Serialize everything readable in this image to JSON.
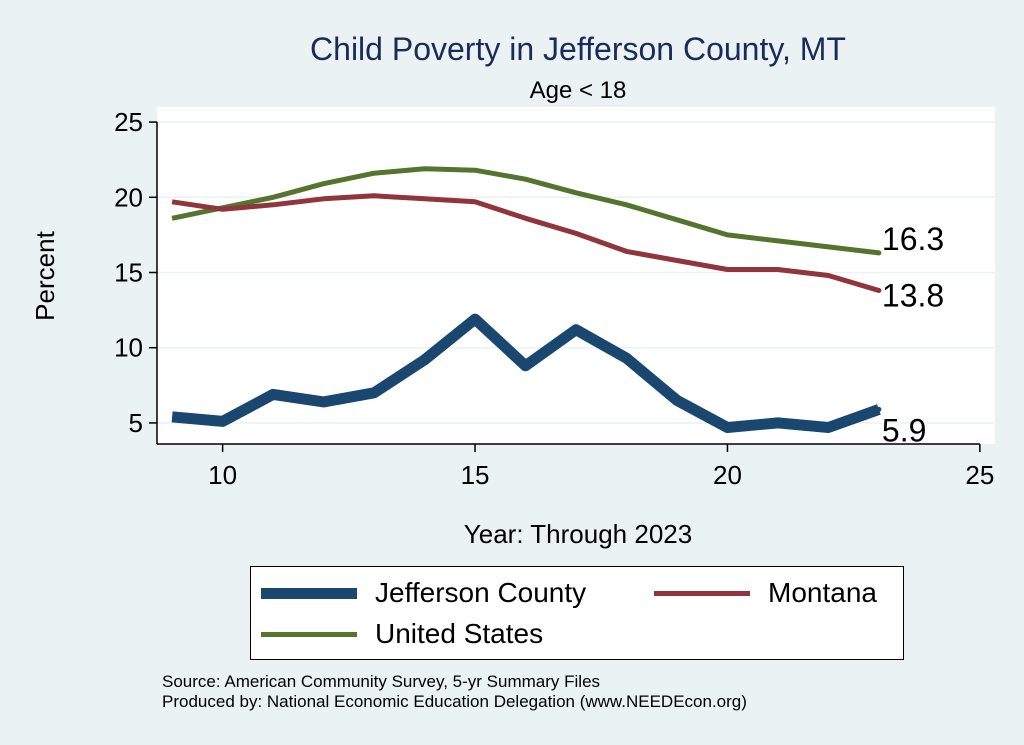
{
  "chart_data": {
    "type": "line",
    "title": "Child Poverty in Jefferson County, MT",
    "subtitle": "Age < 18",
    "xlabel": "Year: Through 2023",
    "ylabel": "Percent",
    "xlim": [
      8.7,
      25.3
    ],
    "ylim": [
      3.6,
      26
    ],
    "xticks": [
      10,
      15,
      20,
      25
    ],
    "yticks": [
      5,
      10,
      15,
      20,
      25
    ],
    "x": [
      9,
      10,
      11,
      12,
      13,
      14,
      15,
      16,
      17,
      18,
      19,
      20,
      21,
      22,
      23
    ],
    "series": [
      {
        "name": "Jefferson County",
        "color": "#1a476f",
        "values": [
          5.4,
          5.1,
          6.9,
          6.4,
          7.0,
          9.2,
          11.9,
          8.8,
          11.2,
          9.3,
          6.5,
          4.7,
          5.0,
          4.7,
          5.9
        ],
        "end_label": "5.9"
      },
      {
        "name": "Montana",
        "color": "#90353b",
        "values": [
          19.7,
          19.2,
          19.5,
          19.9,
          20.1,
          19.9,
          19.7,
          18.6,
          17.6,
          16.4,
          15.8,
          15.2,
          15.2,
          14.8,
          13.8
        ],
        "end_label": "13.8"
      },
      {
        "name": "United States",
        "color": "#55752f",
        "values": [
          18.6,
          19.3,
          20.0,
          20.9,
          21.6,
          21.9,
          21.8,
          21.2,
          20.3,
          19.5,
          18.5,
          17.5,
          17.1,
          16.7,
          16.3
        ],
        "end_label": "16.3"
      }
    ],
    "legend": [
      "Jefferson County",
      "Montana",
      "United States"
    ],
    "legend_position": "bottom"
  },
  "footer": {
    "source": "Source: American Community Survey, 5-yr Summary Files",
    "produced": "Produced by: National Economic Education Delegation (www.NEEDEcon.org)"
  }
}
